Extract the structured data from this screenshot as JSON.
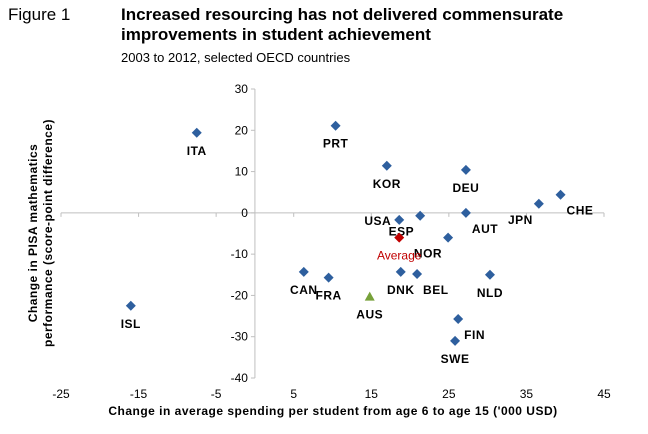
{
  "figure_label": "Figure 1",
  "title": "Increased resourcing has not delivered commensurate improvements in student achievement",
  "subtitle": "2003 to 2012, selected OECD countries",
  "colors": {
    "country": "#2e5f9e",
    "average": "#c00000",
    "australia": "#77a13a",
    "axis": "#bfbfbf"
  },
  "chart_data": {
    "type": "scatter",
    "title": "Increased resourcing has not delivered commensurate improvements in student achievement",
    "subtitle": "2003 to 2012, selected OECD countries",
    "xlabel": "Change in average spending per student from age 6 to age 15 ('000 USD)",
    "ylabel": "Change in PISA mathematics performance (score-point difference)",
    "xlim": [
      -25,
      45
    ],
    "ylim": [
      -40,
      30
    ],
    "xticks": [
      -25,
      -15,
      -5,
      5,
      15,
      25,
      35,
      45
    ],
    "yticks": [
      30,
      20,
      10,
      0,
      -10,
      -20,
      -30,
      -40
    ],
    "grid": false,
    "legend": "none",
    "points": [
      {
        "label": "ITA",
        "x": -7.5,
        "y": 19.4,
        "kind": "country",
        "label_pos": "below"
      },
      {
        "label": "ISL",
        "x": -16.0,
        "y": -22.5,
        "kind": "country",
        "label_pos": "below"
      },
      {
        "label": "PRT",
        "x": 10.4,
        "y": 21.1,
        "kind": "country",
        "label_pos": "below"
      },
      {
        "label": "KOR",
        "x": 17.0,
        "y": 11.4,
        "kind": "country",
        "label_pos": "below"
      },
      {
        "label": "DEU",
        "x": 27.2,
        "y": 10.4,
        "kind": "country",
        "label_pos": "below"
      },
      {
        "label": "USA",
        "x": 18.6,
        "y": -1.7,
        "kind": "country",
        "label_pos": "left"
      },
      {
        "label": "ESP",
        "x": 21.3,
        "y": -0.7,
        "kind": "country",
        "label_pos": "below-left"
      },
      {
        "label": "AUT",
        "x": 27.2,
        "y": 0.0,
        "kind": "country",
        "label_pos": "below-right"
      },
      {
        "label": "JPN",
        "x": 36.6,
        "y": 2.2,
        "kind": "country",
        "label_pos": "below-left"
      },
      {
        "label": "CHE",
        "x": 39.4,
        "y": 4.4,
        "kind": "country",
        "label_pos": "below-right"
      },
      {
        "label": "NOR",
        "x": 24.9,
        "y": -6.0,
        "kind": "country",
        "label_pos": "below-left"
      },
      {
        "label": "Average",
        "x": 18.6,
        "y": -6.0,
        "kind": "average",
        "label_pos": "below"
      },
      {
        "label": "CAN",
        "x": 6.3,
        "y": -14.3,
        "kind": "country",
        "label_pos": "below"
      },
      {
        "label": "FRA",
        "x": 9.5,
        "y": -15.7,
        "kind": "country",
        "label_pos": "below"
      },
      {
        "label": "AUS",
        "x": 14.8,
        "y": -20.3,
        "kind": "australia",
        "label_pos": "below"
      },
      {
        "label": "DNK",
        "x": 18.8,
        "y": -14.3,
        "kind": "country",
        "label_pos": "below"
      },
      {
        "label": "BEL",
        "x": 20.9,
        "y": -14.8,
        "kind": "country",
        "label_pos": "below-right"
      },
      {
        "label": "NLD",
        "x": 30.3,
        "y": -15.0,
        "kind": "country",
        "label_pos": "below"
      },
      {
        "label": "FIN",
        "x": 26.2,
        "y": -25.7,
        "kind": "country",
        "label_pos": "below-right"
      },
      {
        "label": "SWE",
        "x": 25.8,
        "y": -31.0,
        "kind": "country",
        "label_pos": "below"
      }
    ]
  }
}
